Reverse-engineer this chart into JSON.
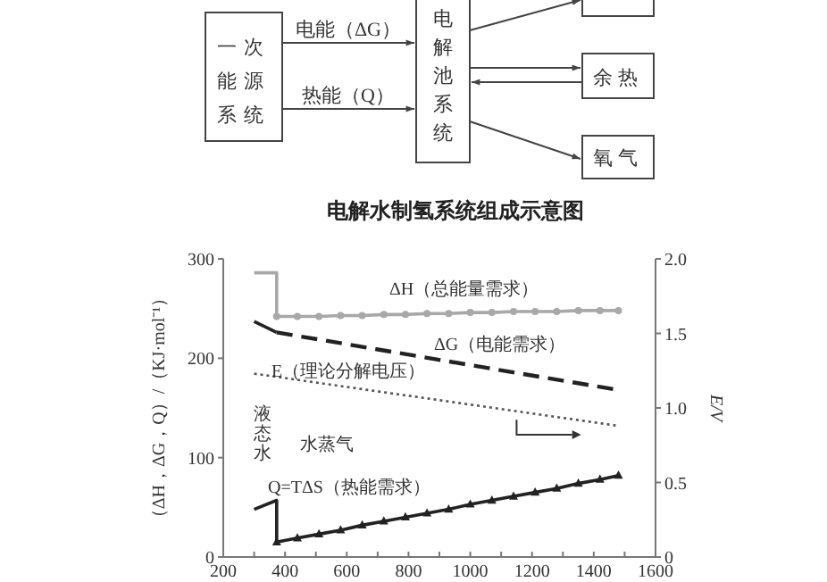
{
  "chart_data": [
    {
      "type": "other",
      "title": "电解水制氢系统组成示意图",
      "annotations": [
        "一次能源系统",
        "电能（ΔG）",
        "热能（Q）",
        "电解池系统",
        "余热",
        "氧气"
      ]
    },
    {
      "type": "line",
      "ylabel": "（ΔH，ΔG，Q）/（KJ·mol⁻¹）",
      "y2label": "E/V",
      "xlim": [
        200,
        1600
      ],
      "xticks": [
        200,
        {
          "value": 300,
          "label": null
        },
        400,
        {
          "value": 500,
          "label": null
        },
        600,
        {
          "value": 700,
          "label": null
        },
        800,
        {
          "value": 900,
          "label": null
        },
        1000,
        {
          "value": 1100,
          "label": null
        },
        1200,
        {
          "value": 1300,
          "label": null
        },
        1400,
        {
          "value": 1500,
          "label": null
        },
        1600
      ],
      "ylim": [
        0,
        300
      ],
      "yticks": [
        0,
        100,
        200,
        300
      ],
      "y2lim": [
        0,
        2.0
      ],
      "y2ticks": [
        0,
        0.5,
        {
          "value": 1,
          "label": "1.0"
        },
        1.5,
        {
          "value": 2,
          "label": "2.0"
        }
      ],
      "grid": false,
      "series": [
        {
          "color": "#a8a8a8",
          "line_style": "solid",
          "marker": "none",
          "x": [
            300,
            373,
            373
          ],
          "values": [
            286,
            286,
            242
          ]
        },
        {
          "color": "#a8a8a8",
          "line_style": "solid",
          "marker": "circle",
          "x": [
            373,
            440,
            510,
            580,
            650,
            720,
            790,
            860,
            930,
            1000,
            1070,
            1140,
            1210,
            1280,
            1350,
            1420,
            1480
          ],
          "values": [
            242,
            242,
            242,
            243,
            243,
            244,
            244,
            245,
            245,
            246,
            246,
            247,
            247,
            247,
            248,
            248,
            248
          ]
        },
        {
          "color": "#222222",
          "line_style": "solid",
          "marker": "none",
          "x": [
            300,
            373
          ],
          "values": [
            237,
            226
          ]
        },
        {
          "color": "#222222",
          "line_style": "dashed",
          "marker": "none",
          "x": [
            373,
            1480
          ],
          "values": [
            226,
            168
          ]
        },
        {
          "color": "#555555",
          "line_style": "dotted",
          "marker": "none",
          "axis": "y2",
          "x": [
            300,
            1480
          ],
          "values": [
            1.23,
            0.88
          ]
        },
        {
          "color": "#222222",
          "line_style": "solid",
          "marker": "none",
          "x": [
            300,
            373,
            373
          ],
          "values": [
            48,
            57,
            15
          ]
        },
        {
          "color": "#222222",
          "line_style": "solid",
          "marker": "triangle",
          "x": [
            373,
            440,
            510,
            580,
            650,
            720,
            790,
            860,
            930,
            1000,
            1070,
            1140,
            1210,
            1280,
            1350,
            1420,
            1480
          ],
          "values": [
            15,
            19,
            23,
            27,
            32,
            36,
            40,
            44,
            48,
            53,
            57,
            61,
            65,
            69,
            74,
            78,
            82
          ]
        }
      ],
      "annotations": [
        "ΔH（总能量需求）",
        "ΔG（电能需求）",
        "E（理论分解电压）",
        "Q=TΔS（热能需求）",
        "液态水",
        "水蒸气"
      ]
    }
  ]
}
